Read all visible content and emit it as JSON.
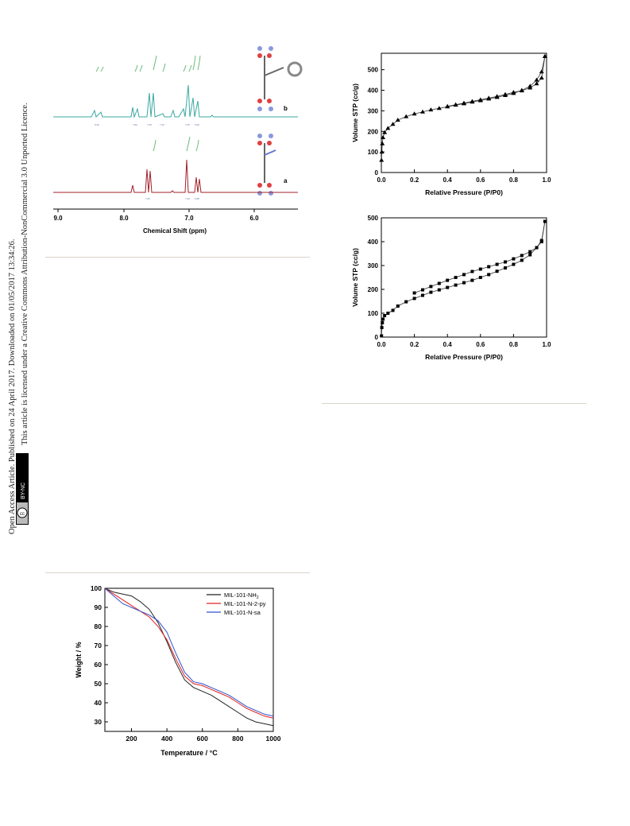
{
  "sidebar": {
    "line1": "Open Access Article. Published on 24 April 2017. Downloaded on 01/05/2017 13:34:26.",
    "line2": "This article is licensed under a Creative Commons Attribution-NonCommercial 3.0 Unported Licence.",
    "badge_cc": "cc",
    "badge_text": "BY-NC"
  },
  "nmr": {
    "xlabel": "Chemical Shift (ppm)",
    "ticks": [
      "9.0",
      "8.0",
      "7.0",
      "6.0"
    ],
    "label_b": "b",
    "label_a": "a",
    "colors": {
      "b": "#3aa8a0",
      "a": "#a0202a",
      "integral": "#66bb77"
    }
  },
  "chart_data": [
    {
      "type": "line",
      "xlabel": "Relative Pressure (P/P0)",
      "ylabel": "Volume STP (cc/g)",
      "xlim": [
        0,
        1.0
      ],
      "ylim": [
        0,
        580
      ],
      "xticks": [
        "0.0",
        "0.2",
        "0.4",
        "0.6",
        "0.8",
        "1.0"
      ],
      "yticks": [
        "0",
        "100",
        "200",
        "300",
        "400",
        "500"
      ],
      "marker": "triangle",
      "series": [
        {
          "x": [
            0.001,
            0.003,
            0.006,
            0.01,
            0.02,
            0.04,
            0.07,
            0.1,
            0.15,
            0.2,
            0.25,
            0.3,
            0.35,
            0.4,
            0.45,
            0.5,
            0.55,
            0.6,
            0.65,
            0.7,
            0.75,
            0.8,
            0.85,
            0.9,
            0.94,
            0.97,
            0.99
          ],
          "values": [
            60,
            100,
            140,
            170,
            195,
            215,
            235,
            255,
            272,
            285,
            295,
            305,
            312,
            320,
            328,
            335,
            343,
            350,
            358,
            366,
            375,
            385,
            400,
            420,
            450,
            490,
            565
          ]
        },
        {
          "x": [
            0.99,
            0.97,
            0.94,
            0.9,
            0.85,
            0.8,
            0.75,
            0.7,
            0.65,
            0.6,
            0.55,
            0.5,
            0.45,
            0.4
          ],
          "values": [
            565,
            460,
            432,
            412,
            398,
            390,
            380,
            370,
            362,
            354,
            346,
            338,
            330,
            322
          ]
        }
      ]
    },
    {
      "type": "line",
      "xlabel": "Relative Pressure (P/P0)",
      "ylabel": "Volume STP (cc/g)",
      "xlim": [
        0,
        1.0
      ],
      "ylim": [
        0,
        500
      ],
      "xticks": [
        "0.0",
        "0.2",
        "0.4",
        "0.6",
        "0.8",
        "1.0"
      ],
      "yticks": [
        "0",
        "100",
        "200",
        "300",
        "400",
        "500"
      ],
      "marker": "square",
      "series": [
        {
          "x": [
            0.001,
            0.003,
            0.006,
            0.01,
            0.02,
            0.04,
            0.07,
            0.1,
            0.15,
            0.2,
            0.25,
            0.3,
            0.35,
            0.4,
            0.45,
            0.5,
            0.55,
            0.6,
            0.65,
            0.7,
            0.75,
            0.8,
            0.85,
            0.9,
            0.94,
            0.97,
            0.99
          ],
          "values": [
            5,
            40,
            60,
            75,
            90,
            100,
            112,
            130,
            148,
            162,
            175,
            188,
            198,
            208,
            218,
            228,
            238,
            250,
            262,
            276,
            290,
            305,
            322,
            345,
            375,
            405,
            485
          ]
        },
        {
          "x": [
            0.99,
            0.97,
            0.94,
            0.9,
            0.85,
            0.8,
            0.75,
            0.7,
            0.65,
            0.6,
            0.55,
            0.5,
            0.45,
            0.4,
            0.35,
            0.3,
            0.25,
            0.2
          ],
          "values": [
            485,
            400,
            375,
            358,
            342,
            328,
            315,
            305,
            295,
            285,
            275,
            262,
            250,
            238,
            225,
            212,
            198,
            185
          ]
        }
      ]
    },
    {
      "type": "line",
      "xlabel": "Temperature / °C",
      "ylabel": "Weight / %",
      "xlim": [
        50,
        1000
      ],
      "ylim": [
        25,
        100
      ],
      "xticks": [
        "200",
        "400",
        "600",
        "800",
        "1000"
      ],
      "yticks": [
        "30",
        "40",
        "50",
        "60",
        "70",
        "80",
        "90",
        "100"
      ],
      "legend": "top-right",
      "series": [
        {
          "name": "MIL-101-NH",
          "sub": "2",
          "color": "#222222",
          "x": [
            50,
            100,
            150,
            200,
            250,
            300,
            350,
            400,
            450,
            500,
            550,
            600,
            650,
            700,
            750,
            800,
            850,
            900,
            950,
            1000
          ],
          "values": [
            100,
            98,
            97,
            96,
            93,
            89,
            82,
            72,
            61,
            52,
            48,
            46,
            44,
            41,
            38,
            35,
            32,
            30,
            29,
            28
          ]
        },
        {
          "name": "MIL-101-N-2-py",
          "color": "#e02020",
          "x": [
            50,
            100,
            150,
            200,
            250,
            300,
            350,
            400,
            450,
            500,
            550,
            600,
            650,
            700,
            750,
            800,
            850,
            900,
            950,
            1000
          ],
          "values": [
            100,
            97,
            94,
            91,
            88,
            85,
            80,
            73,
            63,
            54,
            50,
            49,
            47,
            45,
            43,
            40,
            37,
            35,
            33,
            32
          ]
        },
        {
          "name": "MIL-101-N-sa",
          "color": "#3050c8",
          "x": [
            50,
            100,
            150,
            200,
            250,
            300,
            350,
            400,
            450,
            500,
            550,
            600,
            650,
            700,
            750,
            800,
            850,
            900,
            950,
            1000
          ],
          "values": [
            100,
            96,
            92,
            90,
            88,
            86,
            83,
            77,
            66,
            56,
            51,
            50,
            48,
            46,
            44,
            41,
            38,
            36,
            34,
            33
          ]
        }
      ]
    }
  ]
}
